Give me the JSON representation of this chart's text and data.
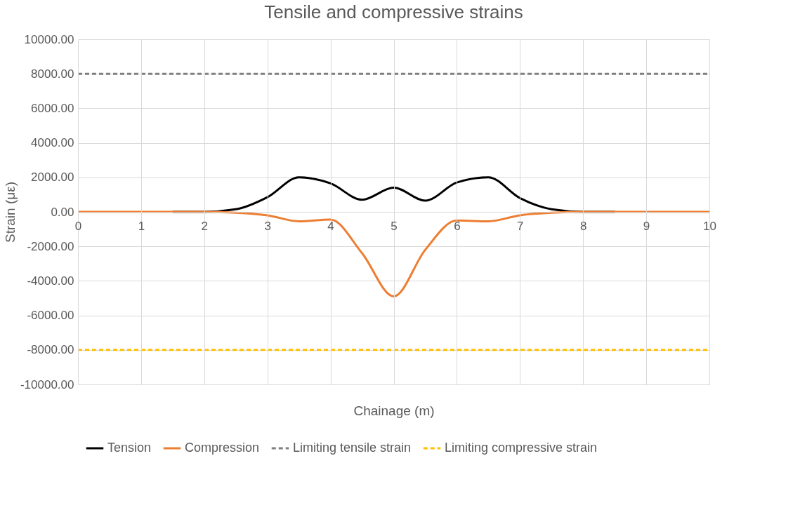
{
  "chart_data": {
    "type": "line",
    "title": "Tensile and compressive strains",
    "xlabel": "Chainage (m)",
    "ylabel": "Strain (με)",
    "x": [
      0,
      0.5,
      1,
      1.5,
      2,
      2.5,
      3,
      3.5,
      4,
      4.5,
      5,
      5.5,
      6,
      6.5,
      7,
      7.5,
      8,
      8.5,
      9,
      9.5,
      10
    ],
    "series": [
      {
        "name": "Tension",
        "color": "#000000",
        "line_style": "solid",
        "values": [
          null,
          null,
          null,
          0,
          0,
          150,
          850,
          2000,
          1650,
          700,
          1400,
          650,
          1700,
          2000,
          800,
          150,
          0,
          0,
          null,
          null,
          null
        ]
      },
      {
        "name": "Compression",
        "color": "#ed7d31",
        "line_style": "solid",
        "values": [
          0,
          0,
          0,
          0,
          0,
          -50,
          -200,
          -550,
          -450,
          -2400,
          -4900,
          -2200,
          -500,
          -550,
          -200,
          -50,
          0,
          0,
          0,
          0,
          0
        ]
      },
      {
        "name": "Limiting tensile strain",
        "color": "#7f7f7f",
        "line_style": "dashed",
        "values": [
          8000,
          8000,
          8000,
          8000,
          8000,
          8000,
          8000,
          8000,
          8000,
          8000,
          8000,
          8000,
          8000,
          8000,
          8000,
          8000,
          8000,
          8000,
          8000,
          8000,
          8000
        ]
      },
      {
        "name": "Limiting compressive strain",
        "color": "#ffc000",
        "line_style": "dashed",
        "values": [
          -8000,
          -8000,
          -8000,
          -8000,
          -8000,
          -8000,
          -8000,
          -8000,
          -8000,
          -8000,
          -8000,
          -8000,
          -8000,
          -8000,
          -8000,
          -8000,
          -8000,
          -8000,
          -8000,
          -8000,
          -8000
        ]
      }
    ],
    "xlim": [
      0,
      10
    ],
    "xticks": [
      0,
      1,
      2,
      3,
      4,
      5,
      6,
      7,
      8,
      9,
      10
    ],
    "ylim": [
      -10000,
      10000
    ],
    "yticks": [
      {
        "value": -10000,
        "label": "-10000.00"
      },
      {
        "value": -8000,
        "label": "-8000.00"
      },
      {
        "value": -6000,
        "label": "-6000.00"
      },
      {
        "value": -4000,
        "label": "-4000.00"
      },
      {
        "value": -2000,
        "label": "-2000.00"
      },
      {
        "value": 0,
        "label": "0.00"
      },
      {
        "value": 2000,
        "label": "2000.00"
      },
      {
        "value": 4000,
        "label": "4000.00"
      },
      {
        "value": 6000,
        "label": "6000.00"
      },
      {
        "value": 8000,
        "label": "8000.00"
      },
      {
        "value": 10000,
        "label": "10000.00"
      }
    ],
    "grid": true,
    "legend": "bottom"
  }
}
